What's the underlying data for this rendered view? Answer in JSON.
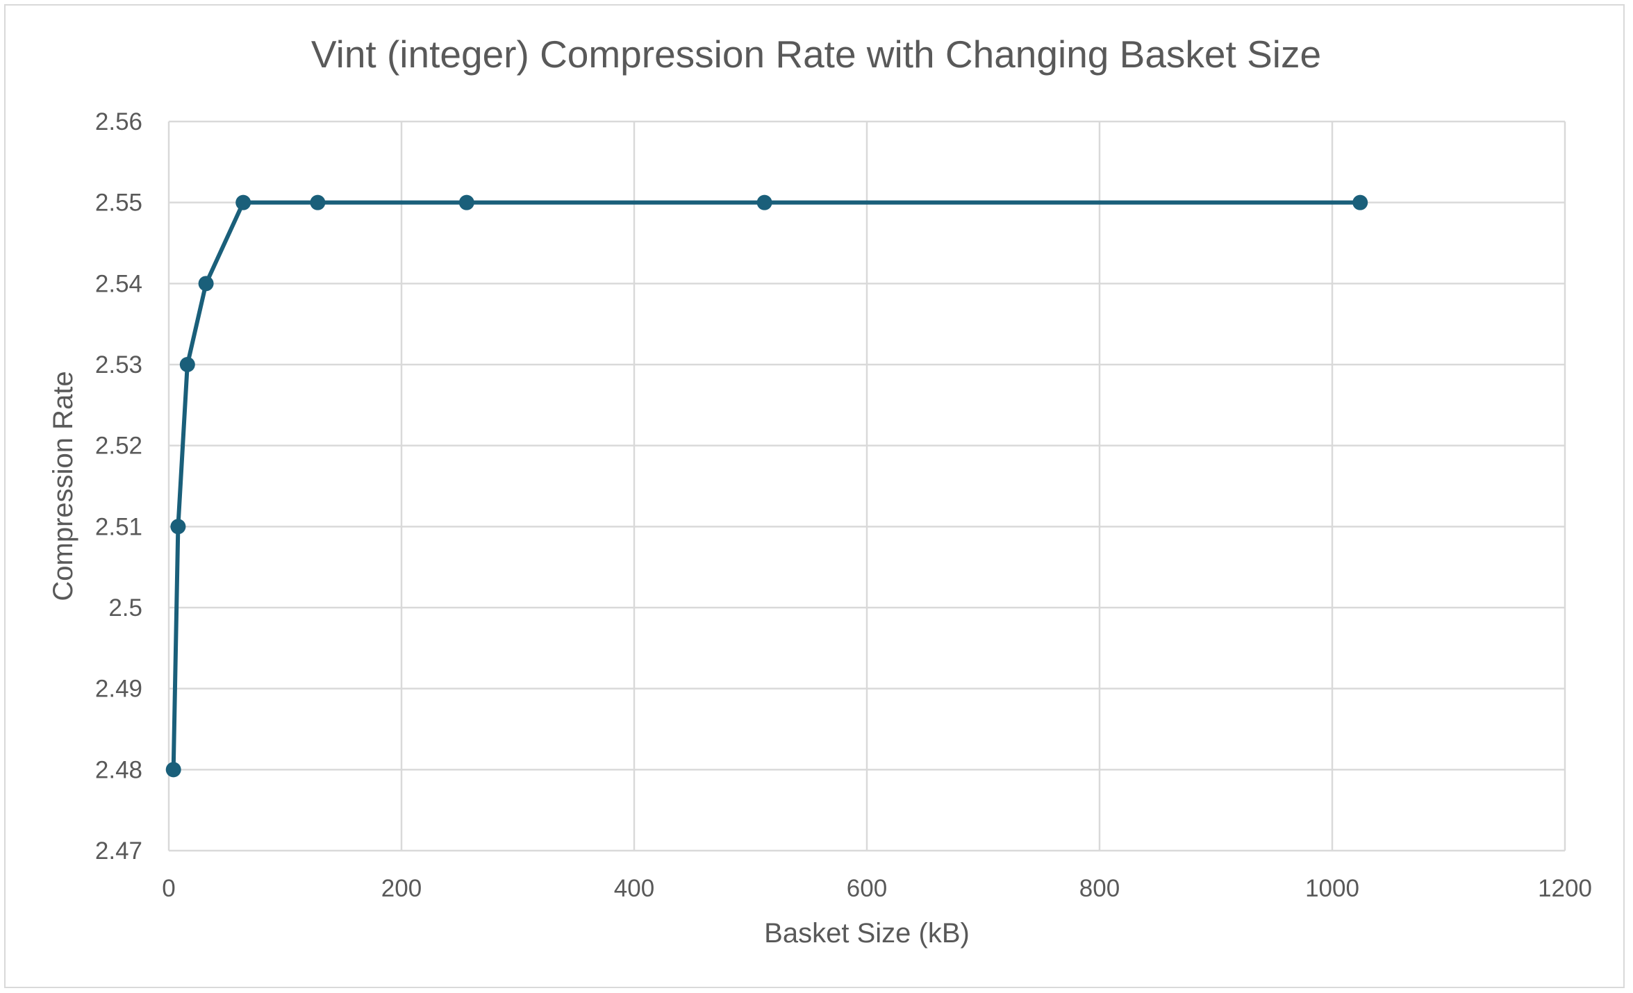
{
  "chart_data": {
    "type": "scatter",
    "title": "Vint (integer) Compression Rate with Changing Basket Size",
    "xlabel": "Basket Size (kB)",
    "ylabel": "Compression Rate",
    "xlim": [
      0,
      1200
    ],
    "ylim": [
      2.47,
      2.56
    ],
    "x_ticks": [
      "0",
      "200",
      "400",
      "600",
      "800",
      "1000",
      "1200"
    ],
    "y_ticks": [
      "2.47",
      "2.48",
      "2.49",
      "2.5",
      "2.51",
      "2.52",
      "2.53",
      "2.54",
      "2.55",
      "2.56"
    ],
    "grid": true,
    "legend": "none",
    "series": [
      {
        "color": "#1a5f7a",
        "x": [
          4,
          8,
          16,
          32,
          64,
          128,
          256,
          512,
          1024
        ],
        "y": [
          2.48,
          2.51,
          2.53,
          2.54,
          2.55,
          2.55,
          2.55,
          2.55,
          2.55
        ]
      }
    ]
  }
}
